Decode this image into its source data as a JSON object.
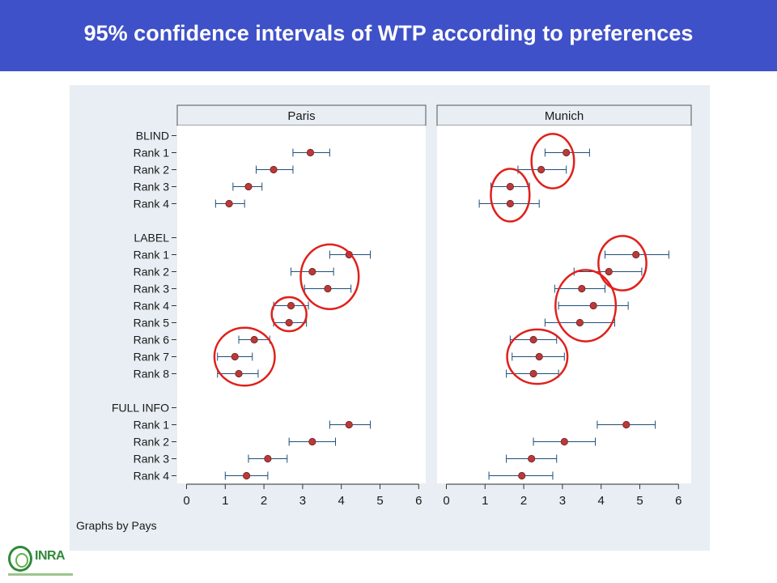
{
  "header": {
    "title": "95% confidence intervals of WTP according to preferences"
  },
  "logo": {
    "text": "INRA",
    "icon": "inra-logo-icon"
  },
  "colors": {
    "title_bar": "#3f51c8",
    "frame_bg": "#e8eef3",
    "panel_bg": "#ffffff",
    "panel_header_bg": "#e8eef3",
    "marker": "#b83a3a",
    "ci_line": "#1f4e79",
    "highlight_circle": "#e0201b"
  },
  "chart_data": {
    "type": "dot-range",
    "note": "Graphs by Pays",
    "xlim": [
      0,
      6
    ],
    "xticks": [
      "0",
      "1",
      "2",
      "3",
      "4",
      "5",
      "6"
    ],
    "row_labels": [
      "BLIND",
      "Rank 1",
      "Rank 2",
      "Rank 3",
      "Rank 4",
      "",
      "LABEL",
      "Rank 1",
      "Rank 2",
      "Rank 3",
      "Rank 4",
      "Rank 5",
      "Rank 6",
      "Rank 7",
      "Rank 8",
      "",
      "FULL INFO",
      "Rank 1",
      "Rank 2",
      "Rank 3",
      "Rank 4"
    ],
    "panels": [
      {
        "name": "Paris",
        "points": [
          {
            "row": 1,
            "est": 3.2,
            "lo": 2.75,
            "hi": 3.7
          },
          {
            "row": 2,
            "est": 2.25,
            "lo": 1.8,
            "hi": 2.75
          },
          {
            "row": 3,
            "est": 1.6,
            "lo": 1.2,
            "hi": 1.95
          },
          {
            "row": 4,
            "est": 1.1,
            "lo": 0.75,
            "hi": 1.5
          },
          {
            "row": 7,
            "est": 4.2,
            "lo": 3.7,
            "hi": 4.75
          },
          {
            "row": 8,
            "est": 3.25,
            "lo": 2.7,
            "hi": 3.8
          },
          {
            "row": 9,
            "est": 3.65,
            "lo": 3.05,
            "hi": 4.25
          },
          {
            "row": 10,
            "est": 2.7,
            "lo": 2.25,
            "hi": 3.15
          },
          {
            "row": 11,
            "est": 2.65,
            "lo": 2.25,
            "hi": 3.1
          },
          {
            "row": 12,
            "est": 1.75,
            "lo": 1.35,
            "hi": 2.15
          },
          {
            "row": 13,
            "est": 1.25,
            "lo": 0.8,
            "hi": 1.7
          },
          {
            "row": 14,
            "est": 1.35,
            "lo": 0.8,
            "hi": 1.85
          },
          {
            "row": 17,
            "est": 4.2,
            "lo": 3.7,
            "hi": 4.75
          },
          {
            "row": 18,
            "est": 3.25,
            "lo": 2.65,
            "hi": 3.85
          },
          {
            "row": 19,
            "est": 2.1,
            "lo": 1.6,
            "hi": 2.6
          },
          {
            "row": 20,
            "est": 1.55,
            "lo": 1.0,
            "hi": 2.1
          }
        ],
        "highlights": [
          {
            "x": 3.7,
            "row": 8.3,
            "rx": 0.75,
            "ry": 1.9
          },
          {
            "x": 2.65,
            "row": 10.5,
            "rx": 0.45,
            "ry": 1.0
          },
          {
            "x": 1.5,
            "row": 13.0,
            "rx": 0.78,
            "ry": 1.7
          }
        ]
      },
      {
        "name": "Munich",
        "points": [
          {
            "row": 1,
            "est": 3.1,
            "lo": 2.55,
            "hi": 3.7
          },
          {
            "row": 2,
            "est": 2.45,
            "lo": 1.85,
            "hi": 3.1
          },
          {
            "row": 3,
            "est": 1.65,
            "lo": 1.15,
            "hi": 2.15
          },
          {
            "row": 4,
            "est": 1.65,
            "lo": 0.85,
            "hi": 2.4
          },
          {
            "row": 7,
            "est": 4.9,
            "lo": 4.1,
            "hi": 5.75
          },
          {
            "row": 8,
            "est": 4.2,
            "lo": 3.3,
            "hi": 5.05
          },
          {
            "row": 9,
            "est": 3.5,
            "lo": 2.8,
            "hi": 4.1
          },
          {
            "row": 10,
            "est": 3.8,
            "lo": 2.9,
            "hi": 4.7
          },
          {
            "row": 11,
            "est": 3.45,
            "lo": 2.55,
            "hi": 4.35
          },
          {
            "row": 12,
            "est": 2.25,
            "lo": 1.65,
            "hi": 2.85
          },
          {
            "row": 13,
            "est": 2.4,
            "lo": 1.7,
            "hi": 3.05
          },
          {
            "row": 14,
            "est": 2.25,
            "lo": 1.55,
            "hi": 2.9
          },
          {
            "row": 17,
            "est": 4.65,
            "lo": 3.9,
            "hi": 5.4
          },
          {
            "row": 18,
            "est": 3.05,
            "lo": 2.25,
            "hi": 3.85
          },
          {
            "row": 19,
            "est": 2.2,
            "lo": 1.55,
            "hi": 2.85
          },
          {
            "row": 20,
            "est": 1.95,
            "lo": 1.1,
            "hi": 2.75
          }
        ],
        "highlights": [
          {
            "x": 2.75,
            "row": 1.5,
            "rx": 0.55,
            "ry": 1.6
          },
          {
            "x": 1.65,
            "row": 3.5,
            "rx": 0.5,
            "ry": 1.55
          },
          {
            "x": 4.55,
            "row": 7.5,
            "rx": 0.62,
            "ry": 1.6
          },
          {
            "x": 3.6,
            "row": 10.0,
            "rx": 0.78,
            "ry": 2.1
          },
          {
            "x": 2.35,
            "row": 13.0,
            "rx": 0.78,
            "ry": 1.6
          }
        ]
      }
    ]
  }
}
